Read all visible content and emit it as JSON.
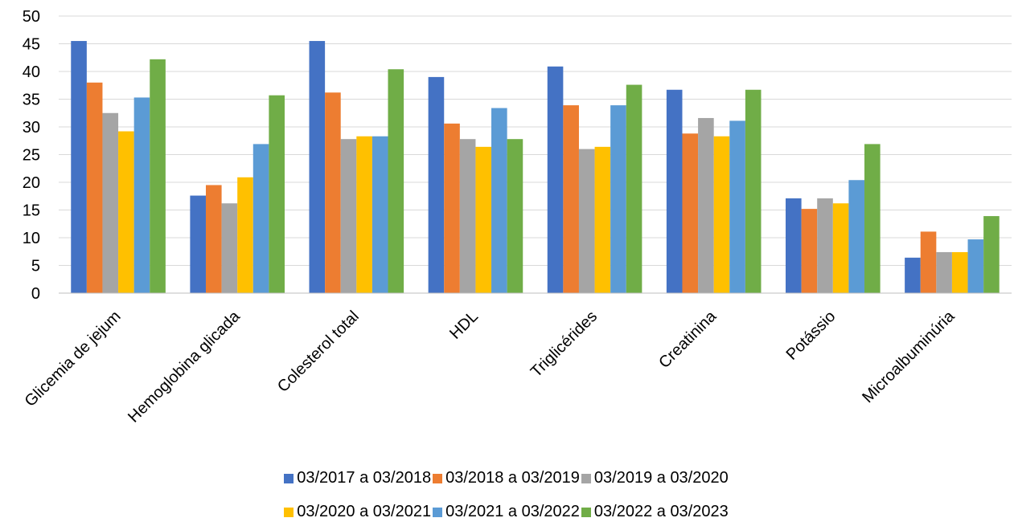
{
  "chart_data": {
    "type": "bar",
    "categories": [
      "Glicemia de jejum",
      "Hemoglobina glicada",
      "Colesterol total",
      "HDL",
      "Triglicérides",
      "Creatinina",
      "Potássio",
      "Microalbuminúria"
    ],
    "series": [
      {
        "name": "03/2017 a 03/2018",
        "color": "#4472C4",
        "values": [
          45.5,
          17.6,
          45.5,
          39.0,
          40.9,
          36.7,
          17.1,
          6.4
        ]
      },
      {
        "name": "03/2018 a 03/2019",
        "color": "#ED7D31",
        "values": [
          38.0,
          19.5,
          36.2,
          30.6,
          33.9,
          28.8,
          15.2,
          11.1
        ]
      },
      {
        "name": "03/2019 a 03/2020",
        "color": "#A5A5A5",
        "values": [
          32.5,
          16.2,
          27.8,
          27.8,
          26.0,
          31.6,
          17.1,
          7.4
        ]
      },
      {
        "name": "03/2020 a 03/2021",
        "color": "#FFC000",
        "values": [
          29.2,
          20.9,
          28.3,
          26.4,
          26.4,
          28.3,
          16.2,
          7.4
        ]
      },
      {
        "name": "03/2021 a 03/2022",
        "color": "#5B9BD5",
        "values": [
          35.3,
          26.9,
          28.3,
          33.4,
          33.9,
          31.1,
          20.4,
          9.7
        ]
      },
      {
        "name": "03/2022 a 03/2023",
        "color": "#70AD47",
        "values": [
          42.2,
          35.7,
          40.4,
          27.8,
          37.6,
          36.7,
          26.9,
          13.9
        ]
      }
    ],
    "yticks": [
      "0",
      "5",
      "10",
      "15",
      "20",
      "25",
      "30",
      "35",
      "40",
      "45",
      "50"
    ],
    "ylim": [
      0,
      50
    ],
    "grid": true,
    "legend_position": "bottom"
  }
}
